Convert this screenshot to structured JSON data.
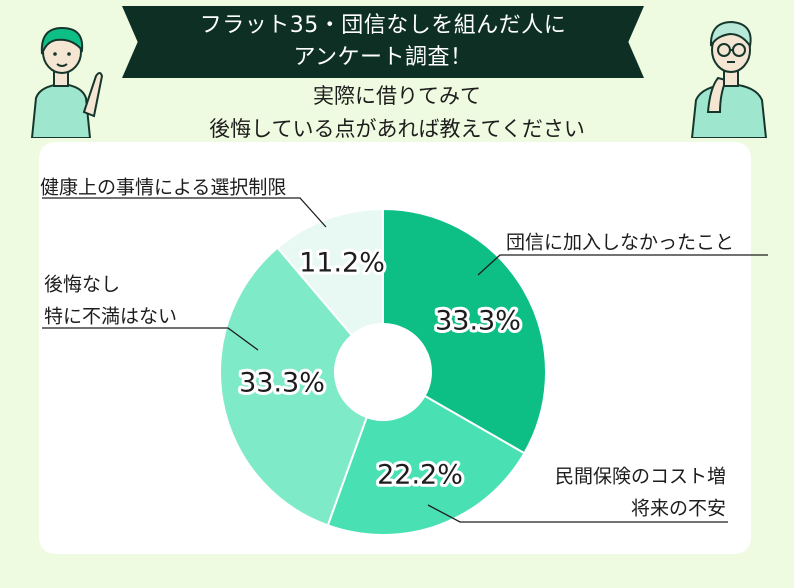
{
  "header": {
    "title_line1": "フラット35・団信なしを組んだ人に",
    "title_line2": "アンケート調査！",
    "subtitle_line1": "実際に借りてみて",
    "subtitle_line2": "後悔している点があれば教えてください"
  },
  "chart_data": {
    "type": "pie",
    "donut": true,
    "categories": [
      "団信に加入しなかったこと",
      "民間保険のコスト増 将来の不安",
      "後悔なし 特に不満はない",
      "健康上の事情による選択制限"
    ],
    "values": [
      33.3,
      22.2,
      33.3,
      11.2
    ],
    "value_labels": [
      "33.3%",
      "22.2%",
      "33.3%",
      "11.2%"
    ],
    "label_lines": [
      [
        "団信に加入しなかったこと"
      ],
      [
        "民間保険のコスト増",
        "将来の不安"
      ],
      [
        "後悔なし",
        "特に不満はない"
      ],
      [
        "健康上の事情による選択制限"
      ]
    ],
    "colors": [
      "#0dbf85",
      "#49e0b3",
      "#7feac8",
      "#e8f8f2"
    ],
    "start": "12 o'clock",
    "direction": "clockwise"
  }
}
